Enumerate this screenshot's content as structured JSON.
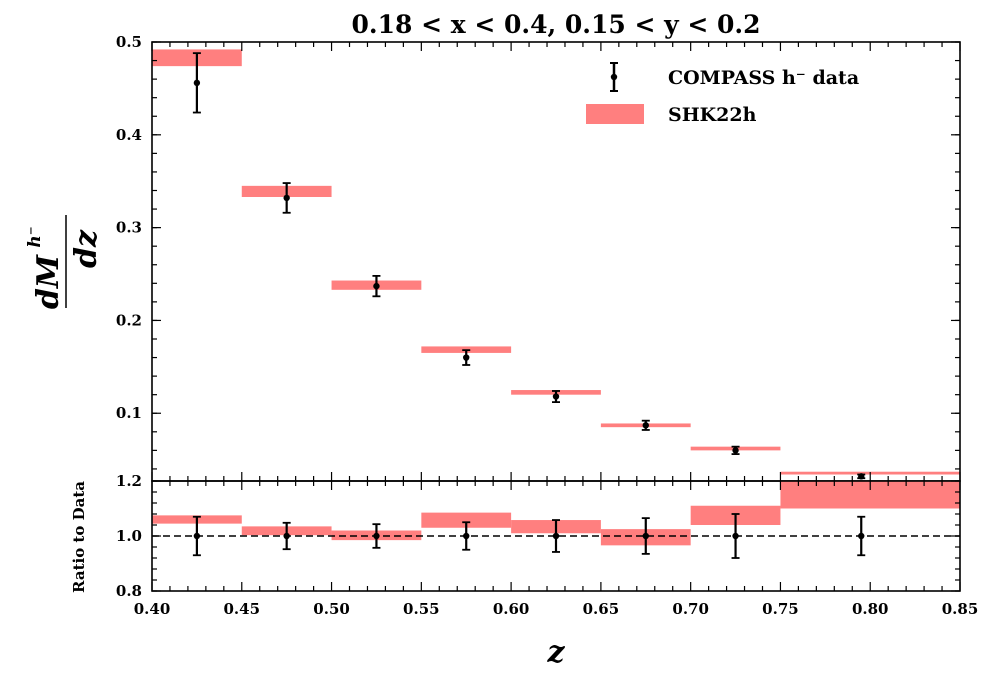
{
  "chart_data": {
    "type": "bar",
    "title": "0.18 < x < 0.4, 0.15 < y < 0.2",
    "xlabel": "z",
    "ylabel_main": "dM",
    "ylabel_sup": "h⁻",
    "ylabel_denominator": "dz",
    "xlim": [
      0.4,
      0.85
    ],
    "x_ticks": [
      0.4,
      0.45,
      0.5,
      0.55,
      0.6,
      0.65,
      0.7,
      0.75,
      0.8,
      0.85
    ],
    "x_tick_labels": [
      "0.40",
      "0.45",
      "0.50",
      "0.55",
      "0.60",
      "0.65",
      "0.70",
      "0.75",
      "0.80",
      "0.85"
    ],
    "main_panel": {
      "ylim": [
        0.027,
        0.5
      ],
      "y_ticks": [
        0.1,
        0.2,
        0.3,
        0.4,
        0.5
      ],
      "y_tick_labels": [
        "0.1",
        "0.2",
        "0.3",
        "0.4",
        "0.5"
      ],
      "data": {
        "name": "COMPASS h⁻ data",
        "x": [
          0.425,
          0.475,
          0.525,
          0.575,
          0.625,
          0.675,
          0.725,
          0.795
        ],
        "y": [
          0.456,
          0.332,
          0.237,
          0.16,
          0.118,
          0.087,
          0.06,
          0.032
        ],
        "err": [
          0.032,
          0.016,
          0.011,
          0.008,
          0.006,
          0.005,
          0.004,
          0.002
        ]
      },
      "band": {
        "name": "SHK22h",
        "color": "#ff7f7f",
        "bins": [
          [
            0.4,
            0.45
          ],
          [
            0.45,
            0.5
          ],
          [
            0.5,
            0.55
          ],
          [
            0.55,
            0.6
          ],
          [
            0.6,
            0.65
          ],
          [
            0.65,
            0.7
          ],
          [
            0.7,
            0.75
          ],
          [
            0.75,
            0.85
          ]
        ],
        "low": [
          0.474,
          0.333,
          0.233,
          0.165,
          0.12,
          0.085,
          0.06,
          0.034
        ],
        "high": [
          0.492,
          0.345,
          0.243,
          0.172,
          0.125,
          0.089,
          0.064,
          0.037
        ]
      }
    },
    "ratio_panel": {
      "ylabel": "Ratio to Data",
      "ylim": [
        0.8,
        1.2
      ],
      "y_ticks": [
        0.8,
        1.0,
        1.2
      ],
      "y_tick_labels": [
        "0.8",
        "1.0",
        "1.2"
      ],
      "reference_line": 1.0,
      "data": {
        "x": [
          0.425,
          0.475,
          0.525,
          0.575,
          0.625,
          0.675,
          0.725,
          0.795
        ],
        "y": [
          1.0,
          1.0,
          1.0,
          1.0,
          1.0,
          1.0,
          1.0,
          1.0
        ],
        "err": [
          0.07,
          0.048,
          0.043,
          0.05,
          0.058,
          0.065,
          0.08,
          0.07
        ]
      },
      "band": {
        "bins": [
          [
            0.4,
            0.45
          ],
          [
            0.45,
            0.5
          ],
          [
            0.5,
            0.55
          ],
          [
            0.55,
            0.6
          ],
          [
            0.6,
            0.65
          ],
          [
            0.65,
            0.7
          ],
          [
            0.7,
            0.75
          ],
          [
            0.75,
            0.85
          ]
        ],
        "low": [
          1.045,
          1.003,
          0.985,
          1.03,
          1.01,
          0.966,
          1.04,
          1.1
        ],
        "high": [
          1.075,
          1.035,
          1.02,
          1.085,
          1.058,
          1.025,
          1.11,
          1.2
        ]
      }
    },
    "legend": {
      "position": "top-right",
      "entries": [
        "COMPASS h⁻ data",
        "SHK22h"
      ]
    }
  }
}
